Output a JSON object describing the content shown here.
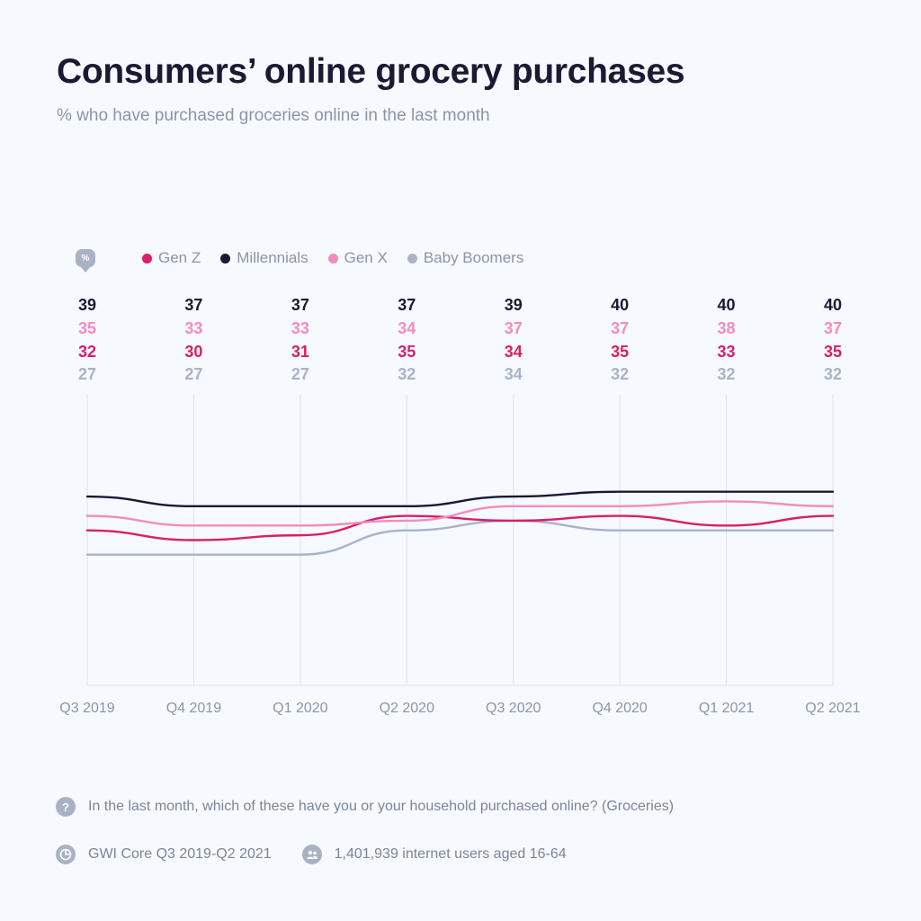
{
  "header": {
    "title": "Consumers’ online grocery purchases",
    "subtitle": "% who have purchased groceries online in the last month"
  },
  "legend": {
    "badge": "%",
    "items": [
      {
        "name": "Gen Z",
        "color": "#d91e6b"
      },
      {
        "name": "Millennials",
        "color": "#181a33"
      },
      {
        "name": "Gen X",
        "color": "#f28cbf"
      },
      {
        "name": "Baby Boomers",
        "color": "#a9b2c9"
      }
    ]
  },
  "chart_data": {
    "type": "line",
    "title": "Consumers’ online grocery purchases",
    "subtitle": "% who have purchased groceries online in the last month",
    "categories": [
      "Q3 2019",
      "Q4 2019",
      "Q1 2020",
      "Q2 2020",
      "Q3 2020",
      "Q4 2020",
      "Q1 2021",
      "Q2 2021"
    ],
    "ylim": [
      0,
      60
    ],
    "xlabel": "",
    "ylabel": "%",
    "series": [
      {
        "name": "Millennials",
        "color": "#181a33",
        "values": [
          39,
          37,
          37,
          37,
          39,
          40,
          40,
          40
        ]
      },
      {
        "name": "Gen X",
        "color": "#f28cbf",
        "values": [
          35,
          33,
          33,
          34,
          37,
          37,
          38,
          37
        ]
      },
      {
        "name": "Gen Z",
        "color": "#d91e6b",
        "values": [
          32,
          30,
          31,
          35,
          34,
          35,
          33,
          35
        ]
      },
      {
        "name": "Baby Boomers",
        "color": "#a9b2c9",
        "values": [
          27,
          27,
          27,
          32,
          34,
          32,
          32,
          32
        ]
      }
    ]
  },
  "footer": {
    "question_icon": "?",
    "question": "In the last month, which of these have you or your household purchased online? (Groceries)",
    "source_icon": "pie-chart-icon",
    "source": "GWI Core Q3 2019-Q2 2021",
    "sample_icon": "users-icon",
    "sample": "1,401,939 internet users aged 16-64"
  }
}
